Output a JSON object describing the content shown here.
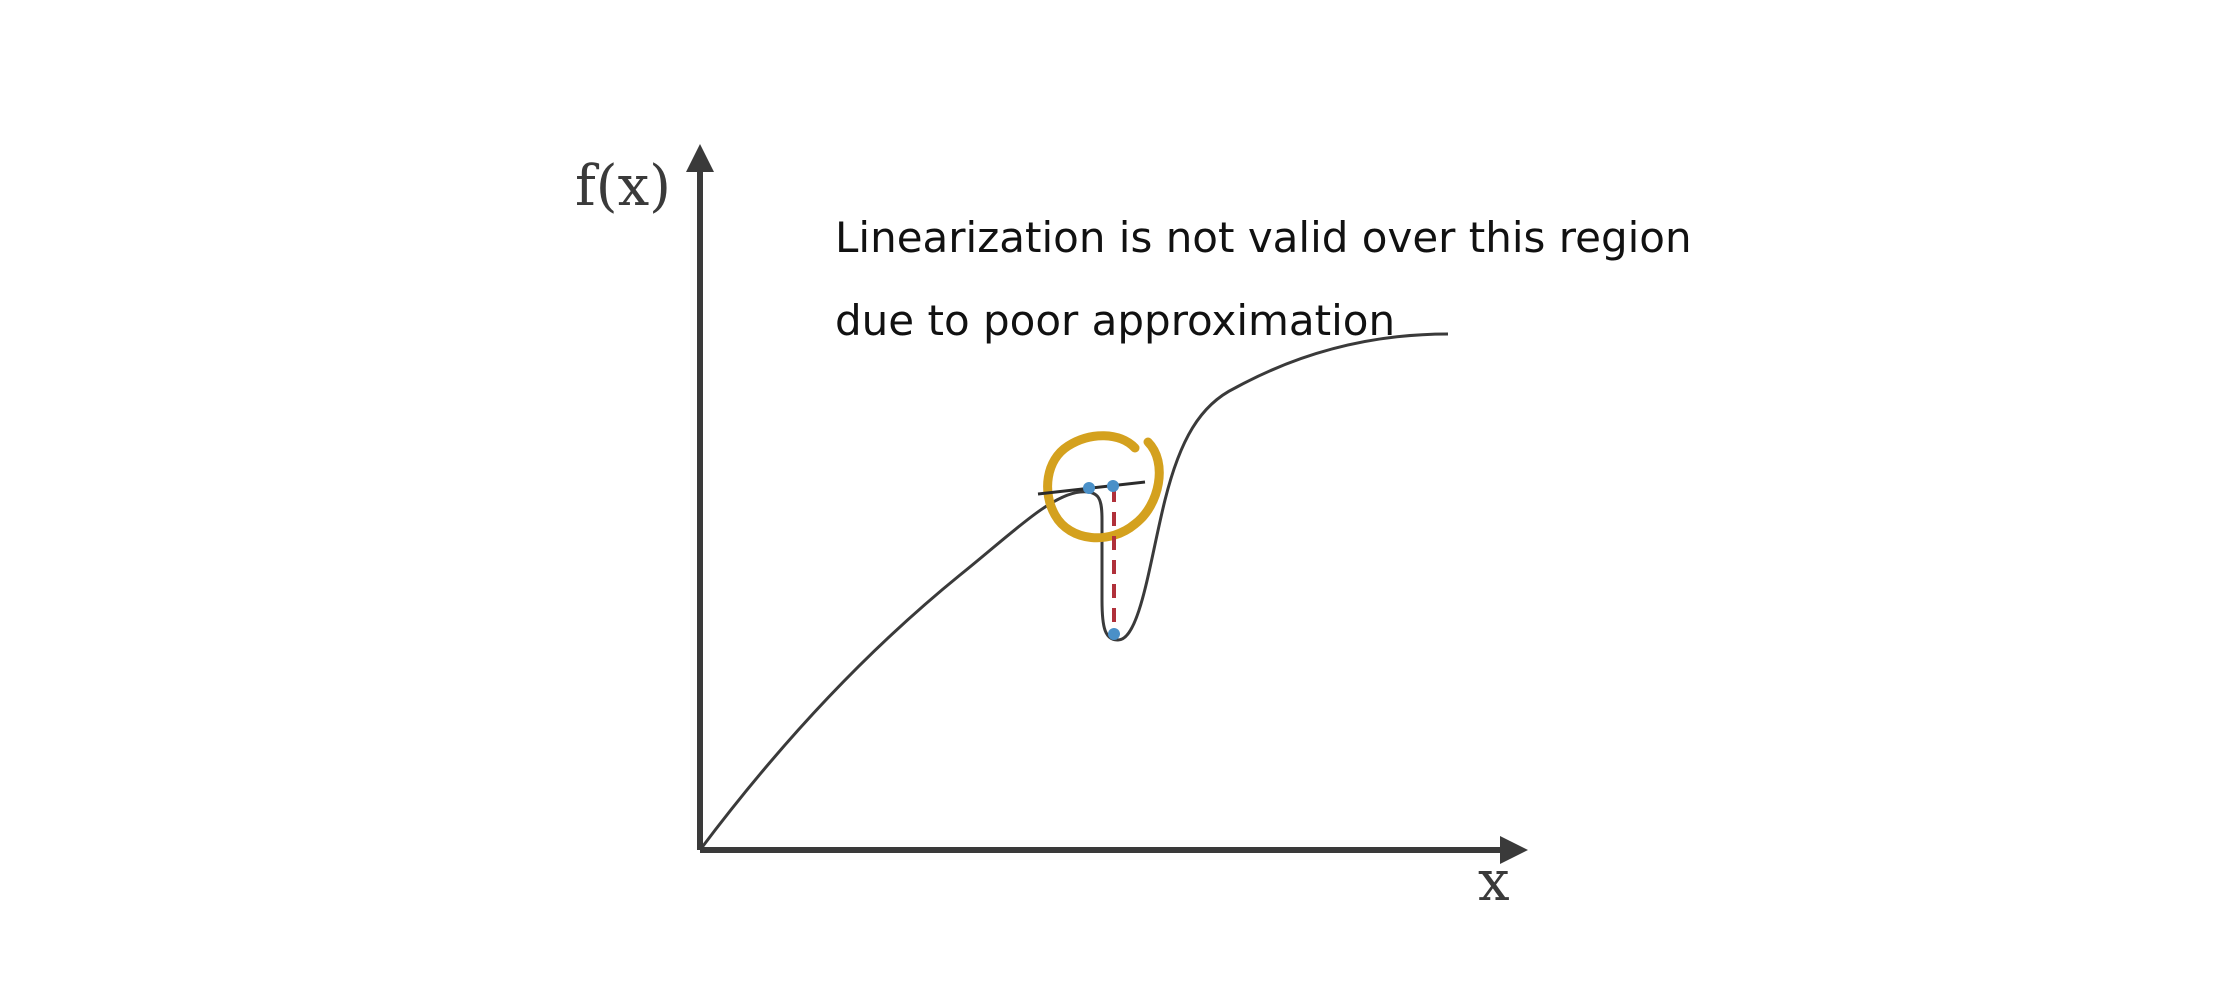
{
  "axes": {
    "y_label": "f(x)",
    "x_label": "x"
  },
  "annotation": {
    "line1": "Linearization is not valid over this region",
    "line2": "due to poor approximation"
  },
  "colors": {
    "axis": "#3a3a3a",
    "curve": "#3a3a3a",
    "tangent": "#2b2b2b",
    "highlight_circle": "#d4a11e",
    "error_dashed": "#b0303a",
    "points": "#4a90c8"
  }
}
